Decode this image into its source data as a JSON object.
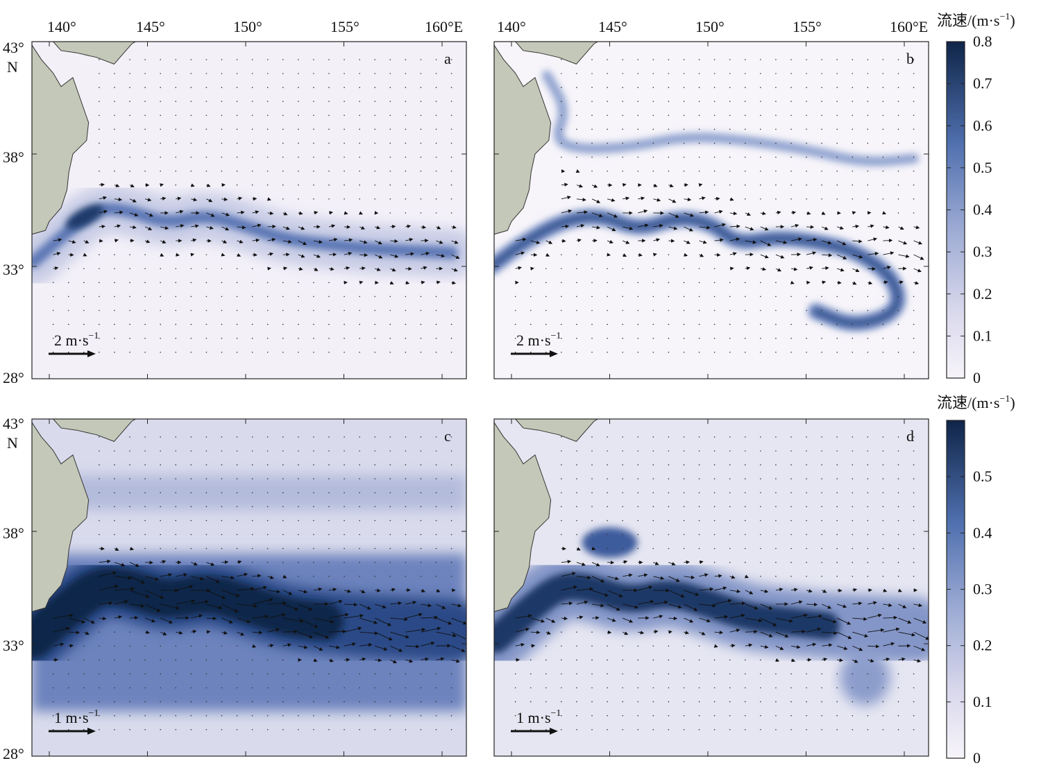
{
  "x_tick_labels": [
    "140°",
    "145°",
    "150°",
    "155°",
    "160°E"
  ],
  "y_tick_labels": [
    "43°",
    "38°",
    "33°",
    "28°"
  ],
  "y_unit_label": "N",
  "panels": [
    {
      "letter": "a",
      "scale_value": "2",
      "scale_unit": "m·s",
      "scale_exp": "−1",
      "style": "weak"
    },
    {
      "letter": "b",
      "scale_value": "2",
      "scale_unit": "m·s",
      "scale_exp": "−1",
      "style": "meander"
    },
    {
      "letter": "c",
      "scale_value": "1",
      "scale_unit": "m·s",
      "scale_exp": "−1",
      "style": "strong"
    },
    {
      "letter": "d",
      "scale_value": "1",
      "scale_unit": "m·s",
      "scale_exp": "−1",
      "style": "medium"
    }
  ],
  "colorbar_top": {
    "title_main": "流速/(m·s",
    "title_exp": "−1",
    "title_close": ")",
    "ticks": [
      "0.8",
      "0.7",
      "0.6",
      "0.5",
      "0.4",
      "0.3",
      "0.2",
      "0.1",
      "0"
    ],
    "tick_values": [
      0.8,
      0.7,
      0.6,
      0.5,
      0.4,
      0.3,
      0.2,
      0.1,
      0
    ],
    "range": [
      0,
      0.8
    ]
  },
  "colorbar_bottom": {
    "title_main": "流速/(m·s",
    "title_exp": "−1",
    "title_close": ")",
    "ticks": [
      "0.5",
      "0.4",
      "0.3",
      "0.2",
      "0.1",
      "0"
    ],
    "tick_values": [
      0.5,
      0.4,
      0.3,
      0.2,
      0.1,
      0
    ],
    "range": [
      0,
      0.6
    ]
  },
  "colors": {
    "land": "#c4c8b8",
    "ocean_low": "#f7f4f9",
    "ocean_mid": "#8fa0cc",
    "ocean_high": "#0f2548",
    "frame": "#222222"
  }
}
